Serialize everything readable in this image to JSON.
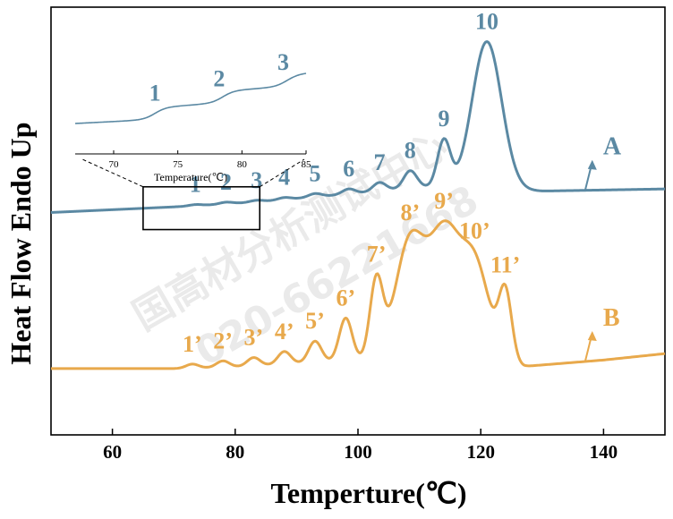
{
  "chart_data": {
    "type": "line",
    "xlabel": "Temperture(℃)",
    "ylabel": "Heat Flow Endo Up",
    "xlim": [
      50,
      150
    ],
    "xticks": [
      "60",
      "80",
      "100",
      "120",
      "140"
    ],
    "ylim": [
      0,
      1
    ],
    "y_ticks_shown": false,
    "grid": false,
    "colors": {
      "A": "#5b89a3",
      "B": "#e8a94c"
    },
    "series": [
      {
        "name": "A",
        "baseline": [
          [
            50,
            0.52
          ],
          [
            73,
            0.535
          ],
          [
            84,
            0.545
          ],
          [
            100,
            0.565
          ],
          [
            110,
            0.58
          ],
          [
            130,
            0.57
          ],
          [
            150,
            0.575
          ]
        ],
        "peaks": [
          {
            "label": "1",
            "x": 73.5,
            "h": 0.003
          },
          {
            "label": "2",
            "x": 78.5,
            "h": 0.004
          },
          {
            "label": "3",
            "x": 83.5,
            "h": 0.004
          },
          {
            "label": "4",
            "x": 88.0,
            "h": 0.005
          },
          {
            "label": "5",
            "x": 93.0,
            "h": 0.008
          },
          {
            "label": "6",
            "x": 98.5,
            "h": 0.012
          },
          {
            "label": "7",
            "x": 103.5,
            "h": 0.02
          },
          {
            "label": "8",
            "x": 108.5,
            "h": 0.04
          },
          {
            "label": "9",
            "x": 114.0,
            "h": 0.11
          },
          {
            "label": "10",
            "x": 121.0,
            "h": 0.345
          }
        ]
      },
      {
        "name": "B",
        "baseline": [
          [
            50,
            0.155
          ],
          [
            72,
            0.155
          ],
          [
            82,
            0.16
          ],
          [
            100,
            0.175
          ],
          [
            115,
            0.18
          ],
          [
            127,
            0.16
          ],
          [
            140,
            0.175
          ],
          [
            150,
            0.19
          ]
        ],
        "peaks": [
          {
            "label": "1’",
            "x": 73.0,
            "h": 0.01
          },
          {
            "label": "2’",
            "x": 78.0,
            "h": 0.015
          },
          {
            "label": "3’",
            "x": 83.0,
            "h": 0.02
          },
          {
            "label": "4’",
            "x": 88.0,
            "h": 0.03
          },
          {
            "label": "5’",
            "x": 93.0,
            "h": 0.05
          },
          {
            "label": "6’",
            "x": 98.0,
            "h": 0.1
          },
          {
            "label": "7’",
            "x": 103.0,
            "h": 0.18
          },
          {
            "label": "8’",
            "x": 108.5,
            "h": 0.275
          },
          {
            "label": "9’",
            "x": 114.0,
            "h": 0.275
          },
          {
            "label": "10’",
            "x": 119.0,
            "h": 0.225
          },
          {
            "label": "11’",
            "x": 124.0,
            "h": 0.16
          }
        ]
      }
    ],
    "inset": {
      "xlabel": "Temperature(℃)",
      "xlim": [
        67,
        85
      ],
      "xticks": [
        "70",
        "75",
        "80",
        "85"
      ],
      "peaks": [
        "1",
        "2",
        "3"
      ],
      "zoom_region": {
        "x": [
          65,
          84
        ],
        "y": [
          0.48,
          0.58
        ]
      }
    }
  },
  "watermark": {
    "line1": "国高材分析测试中心",
    "line2": "020-66221668"
  }
}
